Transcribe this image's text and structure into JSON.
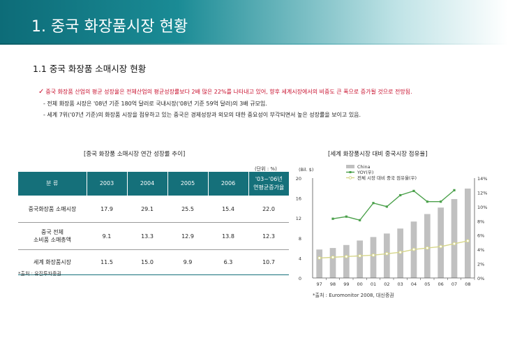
{
  "page": {
    "title": "1. 중국 화장품시장 현황",
    "subtitle": "1.1 중국 화장품 소매시장 현황"
  },
  "text": {
    "bullet": "중국 화장품 산업의 평균 성장율은 전체산업의 평균성장률보다 2배 많은 22%를 나타내고 있어, 향후 세계시장에서의 비중도 큰 폭으로 증가될 것으로 전망됨.",
    "line2": "- 전체 화장품 시장은 '08년 기준 180억 달러로 국내시장('08년 기준 59억 달러)의 3배 규모임.",
    "line3": "-  세계 7위('07년 기준)의 화장품 시장을 점유하고 있는 중국은 경제성장과 외모의 대한 중요성이 부각되면서 높은 성장률을 보이고 있음."
  },
  "table_caption": "[중국 화장품 소매시장 연간 성장률 추이]",
  "chart_caption": "[세계 화장품시장 대비 중국시장 점유율]",
  "unit_label": "(단위 : %)",
  "table": {
    "headers": [
      "분   류",
      "2003",
      "2004",
      "2005",
      "2006",
      "'03~'06년",
      "연평균증가율"
    ],
    "rows": [
      {
        "label": "중국화장품 소매시장",
        "label2": "",
        "values": [
          "17.9",
          "29.1",
          "25.5",
          "15.4",
          "22.0"
        ]
      },
      {
        "label": "중국 전체",
        "label2": "소비품 소매총액",
        "values": [
          "9.1",
          "13.3",
          "12.9",
          "13.8",
          "12.3"
        ]
      },
      {
        "label": "세계 화장품시장",
        "label2": "",
        "values": [
          "11.5",
          "15.0",
          "9.9",
          "6.3",
          "10.7"
        ]
      }
    ]
  },
  "table_source": "*출처 : 유진투자증권",
  "chart_source": "*출처 : Euromonitor 2008, 대신증권",
  "chart_data": {
    "type": "bar",
    "categories": [
      "97",
      "98",
      "99",
      "00",
      "01",
      "02",
      "03",
      "04",
      "05",
      "06",
      "07",
      "08"
    ],
    "y_unit": "(Bil. $)",
    "ylim": [
      0,
      20
    ],
    "y_ticks": [
      "0",
      "4",
      "8",
      "12",
      "16",
      "20"
    ],
    "y2lim": [
      0,
      14
    ],
    "y2_ticks": [
      "0%",
      "2%",
      "4%",
      "6%",
      "8%",
      "10%",
      "12%",
      "14%"
    ],
    "series": [
      {
        "name": "China",
        "type": "bar",
        "axis": "left",
        "color": "#c0c0c0",
        "values": [
          5.7,
          6.0,
          6.6,
          7.5,
          8.2,
          8.9,
          9.9,
          11.3,
          12.8,
          14.1,
          15.8,
          17.9
        ]
      },
      {
        "name": "YOY(우)",
        "type": "line",
        "axis": "right",
        "color": "#4aa04a",
        "values": [
          null,
          8.3,
          8.6,
          8.1,
          10.5,
          10.0,
          11.6,
          12.2,
          10.7,
          10.7,
          12.3,
          null
        ]
      },
      {
        "name": "전체 시장 대비 중국 점유율(우)",
        "type": "line",
        "axis": "right",
        "color": "#d6d68a",
        "values": [
          2.8,
          2.9,
          3.0,
          3.1,
          3.2,
          3.4,
          3.6,
          4.0,
          4.2,
          4.4,
          4.8,
          5.2
        ]
      }
    ],
    "legend_placement": "top-center"
  }
}
